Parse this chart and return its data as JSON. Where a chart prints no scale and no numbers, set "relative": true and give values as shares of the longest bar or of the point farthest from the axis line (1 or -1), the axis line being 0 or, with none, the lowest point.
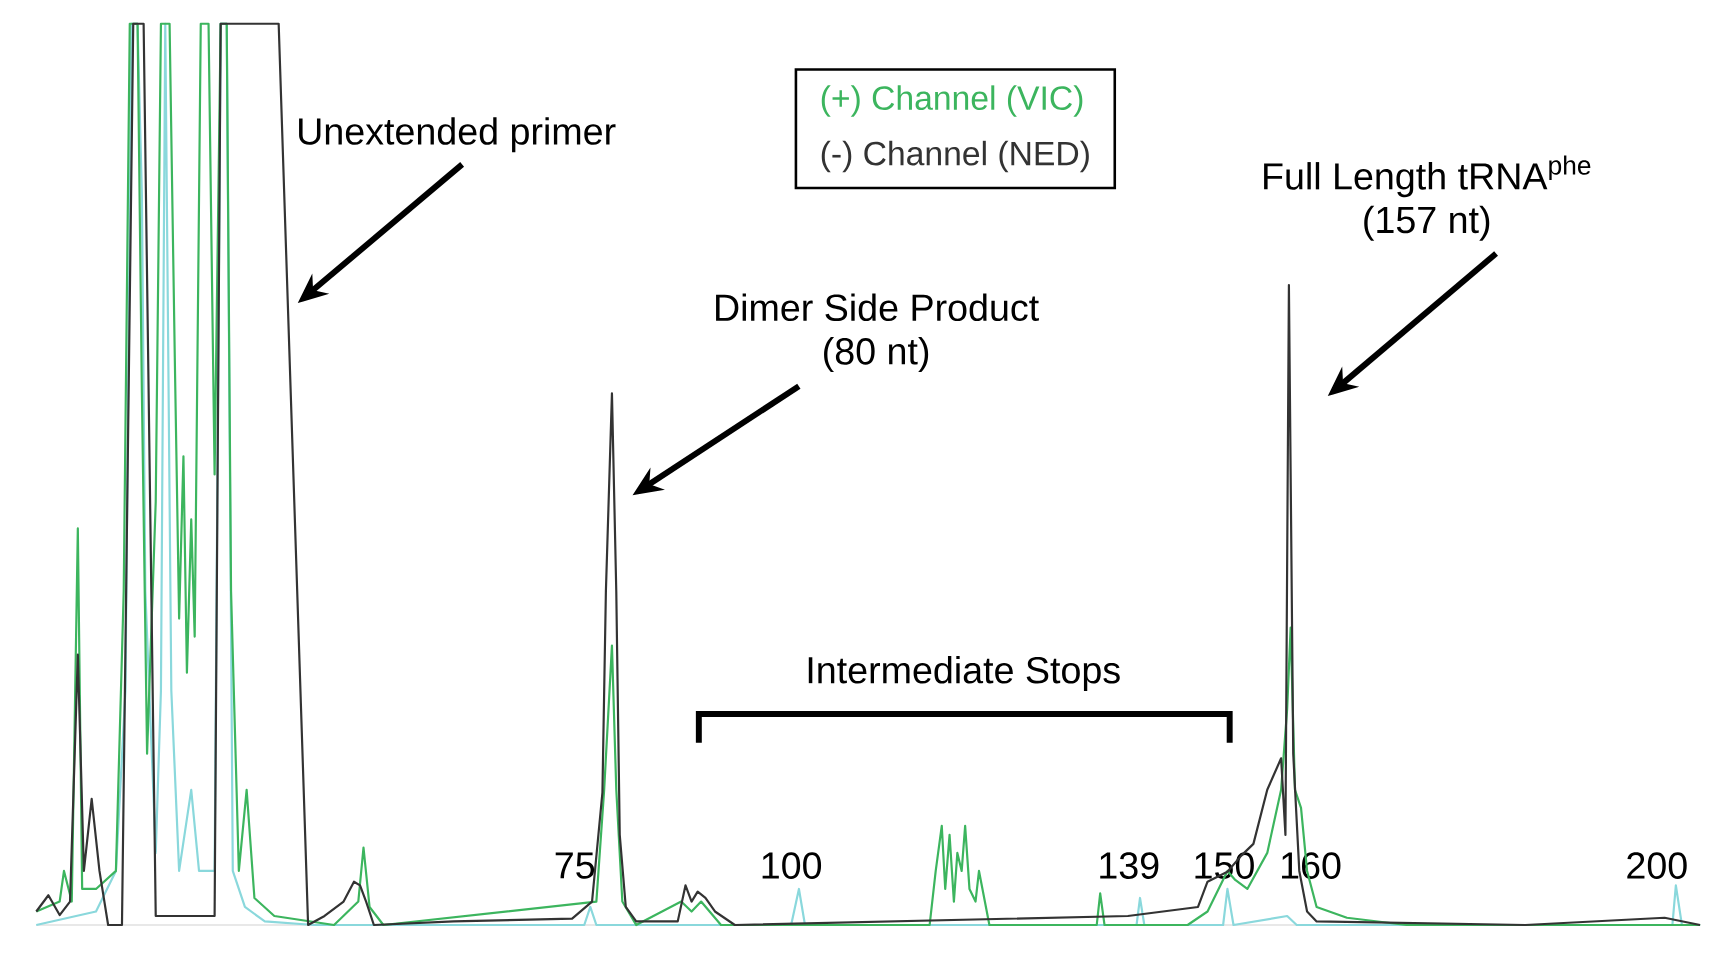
{
  "chart_data": {
    "type": "line",
    "relative": true,
    "xlim": [
      12.8,
      205
    ],
    "xticks": [
      75,
      100,
      139,
      150,
      160,
      200
    ],
    "legend": "top",
    "series": [
      {
        "color": "#8ad8dc",
        "x": [
          12.8,
          19.7,
          22.0,
          23.1,
          23.8,
          24.5,
          25.0,
          25.4,
          26.6,
          27.2,
          27.7,
          28.4,
          29.3,
          30.7,
          31.6,
          33.4,
          34.1,
          34.8,
          35.5,
          36.9,
          39.2,
          44.9,
          76.1,
          76.8,
          77.5,
          100.0,
          100.9,
          101.6,
          139.9,
          140.3,
          140.8,
          149.9,
          150.4,
          151.1,
          157.3,
          158.4,
          201.8,
          202.2,
          202.9,
          205
        ],
        "values": [
          0.0,
          0.015,
          0.06,
          0.26,
          1,
          1,
          0.81,
          0.37,
          0.08,
          0.26,
          1,
          0.26,
          0.06,
          0.15,
          0.06,
          0.06,
          1,
          1,
          0.06,
          0.02,
          0.004,
          0.0,
          0.0,
          0.02,
          0.0,
          0.0,
          0.04,
          0.0,
          0.0,
          0.03,
          0.0,
          0.0,
          0.04,
          0.0,
          0.01,
          0.0,
          0.0,
          0.044,
          0.0,
          0.0
        ]
      },
      {
        "name": "(+) Channel (VIC)",
        "color": "#3cb55e",
        "x": [
          12.8,
          15.5,
          16.0,
          16.9,
          17.6,
          18.1,
          19.7,
          22.0,
          22.9,
          23.6,
          24.5,
          25.0,
          25.6,
          26.6,
          27.2,
          28.2,
          28.8,
          29.3,
          29.8,
          30.2,
          30.7,
          31.1,
          31.8,
          32.7,
          33.4,
          34.1,
          34.8,
          35.3,
          36.2,
          37.1,
          38.0,
          40.3,
          47.2,
          50.0,
          50.6,
          51.3,
          52.9,
          77.5,
          78.4,
          79.3,
          79.8,
          80.5,
          82.1,
          87.3,
          88.5,
          89.6,
          91.9,
          116.0,
          116.7,
          117.4,
          117.8,
          118.3,
          118.8,
          119.2,
          119.7,
          120.1,
          120.6,
          121.3,
          121.7,
          122.9,
          135.3,
          135.7,
          136.2,
          145.8,
          148.1,
          150.4,
          151.3,
          152.7,
          155.0,
          156.6,
          157.3,
          157.7,
          158.2,
          158.9,
          159.6,
          160.7,
          164.2,
          171.1,
          205
        ],
        "values": [
          0.015,
          0.026,
          0.06,
          0.026,
          0.44,
          0.04,
          0.04,
          0.06,
          0.37,
          1,
          1,
          0.59,
          0.19,
          0.47,
          1,
          1,
          0.63,
          0.34,
          0.52,
          0.28,
          0.45,
          0.32,
          1,
          1,
          0.5,
          1,
          1,
          0.37,
          0.06,
          0.15,
          0.03,
          0.01,
          0.0,
          0.026,
          0.086,
          0.02,
          0.0,
          0.026,
          0.15,
          0.31,
          0.15,
          0.026,
          0.0,
          0.026,
          0.015,
          0.026,
          0.0,
          0.0,
          0.06,
          0.11,
          0.04,
          0.1,
          0.026,
          0.08,
          0.06,
          0.11,
          0.04,
          0.026,
          0.06,
          0.0,
          0.0,
          0.035,
          0.0,
          0.0,
          0.015,
          0.06,
          0.05,
          0.04,
          0.08,
          0.15,
          0.24,
          0.33,
          0.15,
          0.13,
          0.06,
          0.02,
          0.008,
          0.0,
          0.0
        ]
      },
      {
        "name": "(-) Channel (NED)",
        "color": "#333333",
        "x": [
          12.8,
          14.2,
          15.5,
          16.7,
          17.6,
          18.3,
          19.2,
          20.1,
          21.1,
          22.7,
          24.0,
          25.2,
          26.6,
          33.4,
          34.1,
          40.8,
          44.2,
          46.1,
          48.3,
          49.5,
          50.2,
          50.9,
          51.8,
          61.0,
          74.7,
          77.0,
          78.2,
          78.6,
          79.3,
          79.8,
          80.2,
          80.9,
          82.1,
          86.9,
          87.8,
          88.5,
          89.2,
          90.1,
          91.2,
          93.5,
          138.9,
          147.0,
          148.1,
          150.4,
          152.0,
          153.4,
          155.0,
          156.6,
          157.1,
          157.5,
          158.0,
          158.7,
          159.6,
          160.7,
          184.8,
          200.9,
          205
        ],
        "values": [
          0.015,
          0.033,
          0.011,
          0.026,
          0.3,
          0.06,
          0.14,
          0.06,
          0.0,
          0.0,
          1,
          1,
          0.01,
          0.01,
          1,
          1,
          0.0,
          0.01,
          0.026,
          0.048,
          0.044,
          0.026,
          0.0,
          0.004,
          0.007,
          0.026,
          0.147,
          0.37,
          0.59,
          0.37,
          0.1,
          0.02,
          0.004,
          0.004,
          0.044,
          0.026,
          0.037,
          0.03,
          0.015,
          0.0,
          0.01,
          0.02,
          0.048,
          0.059,
          0.077,
          0.09,
          0.15,
          0.185,
          0.1,
          0.71,
          0.19,
          0.06,
          0.015,
          0.004,
          0.0,
          0.008,
          0.0
        ]
      }
    ],
    "annotations": [
      "Unextended primer",
      "Dimer Side Product (80 nt)",
      "Full Length tRNA$^{phe}$ (157 nt)",
      "Intermediate Stops"
    ]
  }
}
